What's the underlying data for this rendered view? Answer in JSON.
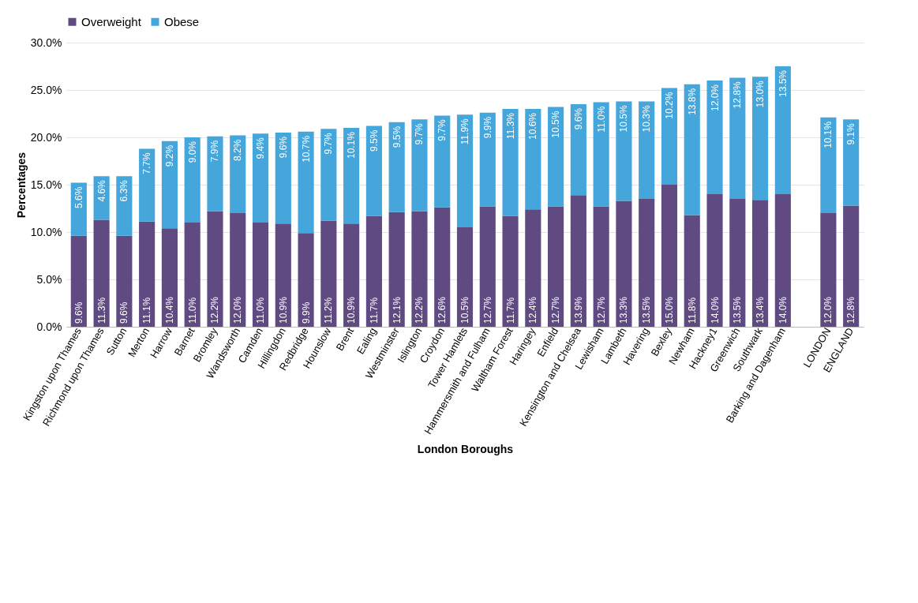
{
  "chart_data": {
    "type": "bar",
    "stacked": true,
    "xlabel": "London Boroughs",
    "ylabel": "Percentages",
    "legend": "top",
    "grid": "y",
    "categories": [
      "Kingston upon Thames",
      "Richmond upon Thames",
      "Sutton",
      "Merton",
      "Harrow",
      "Barnet",
      "Bromley",
      "Wandsworth",
      "Camden",
      "Hillingdon",
      "Redbridge",
      "Hounslow",
      "Brent",
      "Ealing",
      "Westminster",
      "Islington",
      "Croydon",
      "Tower Hamlets",
      "Hammersmith and Fulham",
      "Waltham Forest",
      "Haringey",
      "Enfield",
      "Kensington and Chelsea",
      "Lewisham",
      "Lambeth",
      "Havering",
      "Bexley",
      "Newham",
      "Hackney1",
      "Greenwich",
      "Southwark",
      "Barking and Dagenham",
      null,
      "LONDON",
      "ENGLAND"
    ],
    "ylim": [
      0,
      30
    ],
    "yticks": [
      {
        "value": 0,
        "label": "0.0%"
      },
      {
        "value": 5,
        "label": "5.0%"
      },
      {
        "value": 10,
        "label": "10.0%"
      },
      {
        "value": 15,
        "label": "15.0%"
      },
      {
        "value": 20,
        "label": "20.0%"
      },
      {
        "value": 25,
        "label": "25.0%"
      },
      {
        "value": 30,
        "label": "30.0%"
      }
    ],
    "series": [
      {
        "name": "Overweight",
        "color": "#5f4a82",
        "values": [
          9.6,
          11.3,
          9.6,
          11.1,
          10.4,
          11.0,
          12.2,
          12.0,
          11.0,
          10.9,
          9.9,
          11.2,
          10.9,
          11.7,
          12.1,
          12.2,
          12.6,
          10.5,
          12.7,
          11.7,
          12.4,
          12.7,
          13.9,
          12.7,
          13.3,
          13.5,
          15.0,
          11.8,
          14.0,
          13.5,
          13.4,
          14.0,
          null,
          12.0,
          12.8
        ],
        "value_labels": [
          "9.6%",
          "11.3%",
          "9.6%",
          "11.1%",
          "10.4%",
          "11.0%",
          "12.2%",
          "12.0%",
          "11.0%",
          "10.9%",
          "9.9%",
          "11.2%",
          "10.9%",
          "11.7%",
          "12.1%",
          "12.2%",
          "12.6%",
          "10.5%",
          "12.7%",
          "11.7%",
          "12.4%",
          "12.7%",
          "13.9%",
          "12.7%",
          "13.3%",
          "13.5%",
          "15.0%",
          "11.8%",
          "14.0%",
          "13.5%",
          "13.4%",
          "14.0%",
          null,
          "12.0%",
          "12.8%"
        ]
      },
      {
        "name": "Obese",
        "color": "#45a6dc",
        "values": [
          5.6,
          4.6,
          6.3,
          7.7,
          9.2,
          9.0,
          7.9,
          8.2,
          9.4,
          9.6,
          10.7,
          9.7,
          10.1,
          9.5,
          9.5,
          9.7,
          9.7,
          11.9,
          9.9,
          11.3,
          10.6,
          10.5,
          9.6,
          11.0,
          10.5,
          10.3,
          10.2,
          13.8,
          12.0,
          12.8,
          13.0,
          13.5,
          null,
          10.1,
          9.1
        ],
        "value_labels": [
          "5.6%",
          "4.6%",
          "6.3%",
          "7.7%",
          "9.2%",
          "9.0%",
          "7.9%",
          "8.2%",
          "9.4%",
          "9.6%",
          "10.7%",
          "9.7%",
          "10.1%",
          "9.5%",
          "9.5%",
          "9.7%",
          "9.7%",
          "11.9%",
          "9.9%",
          "11.3%",
          "10.6%",
          "10.5%",
          "9.6%",
          "11.0%",
          "10.5%",
          "10.3%",
          "10.2%",
          "13.8%",
          "12.0%",
          "12.8%",
          "13.0%",
          "13.5%",
          null,
          "10.1%",
          "9.1%"
        ]
      }
    ]
  }
}
